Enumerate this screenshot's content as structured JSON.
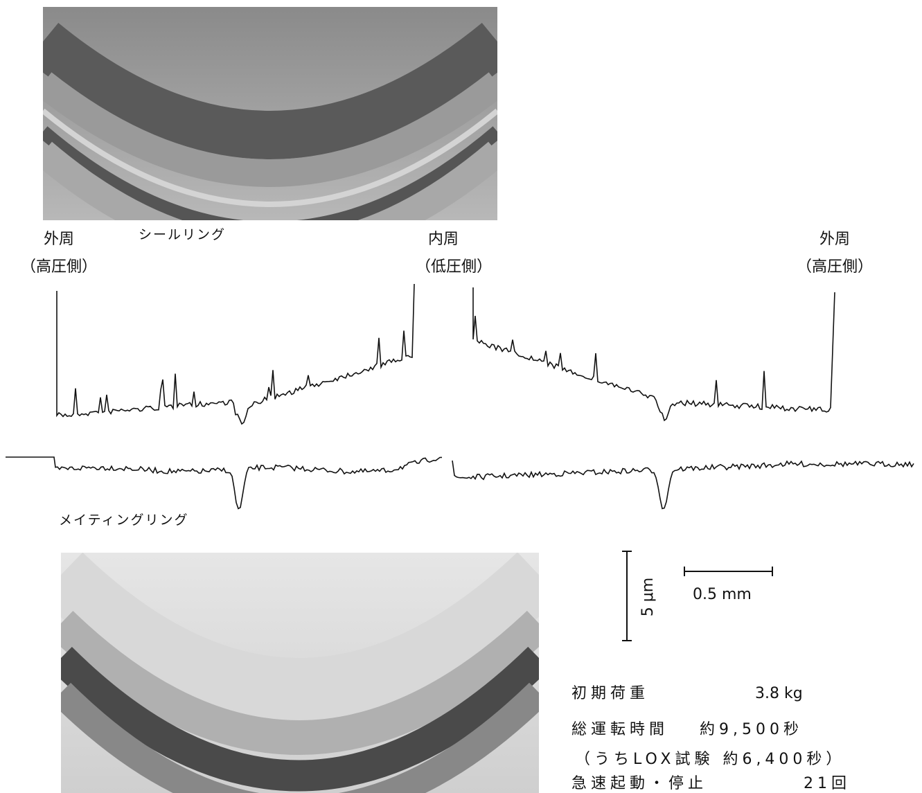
{
  "figure": {
    "labels": {
      "outer_left": "外周",
      "outer_left_side": "（高圧側）",
      "seal_ring": "シールリング",
      "inner": "内周",
      "inner_side": "（低圧側）",
      "outer_right": "外周",
      "outer_right_side": "（高圧側）",
      "mating_ring": "メイティングリング"
    },
    "scale": {
      "vertical": "5 μm",
      "horizontal": "0.5 mm"
    },
    "conditions": [
      {
        "label": "初期荷重",
        "value": "3.8 kg"
      },
      {
        "label": "総運転時間",
        "value": "約9,500秒"
      },
      {
        "label": "（うちLOX試験 約6,400秒）"
      },
      {
        "label": "急速起動・停止",
        "value": "21回"
      }
    ]
  }
}
